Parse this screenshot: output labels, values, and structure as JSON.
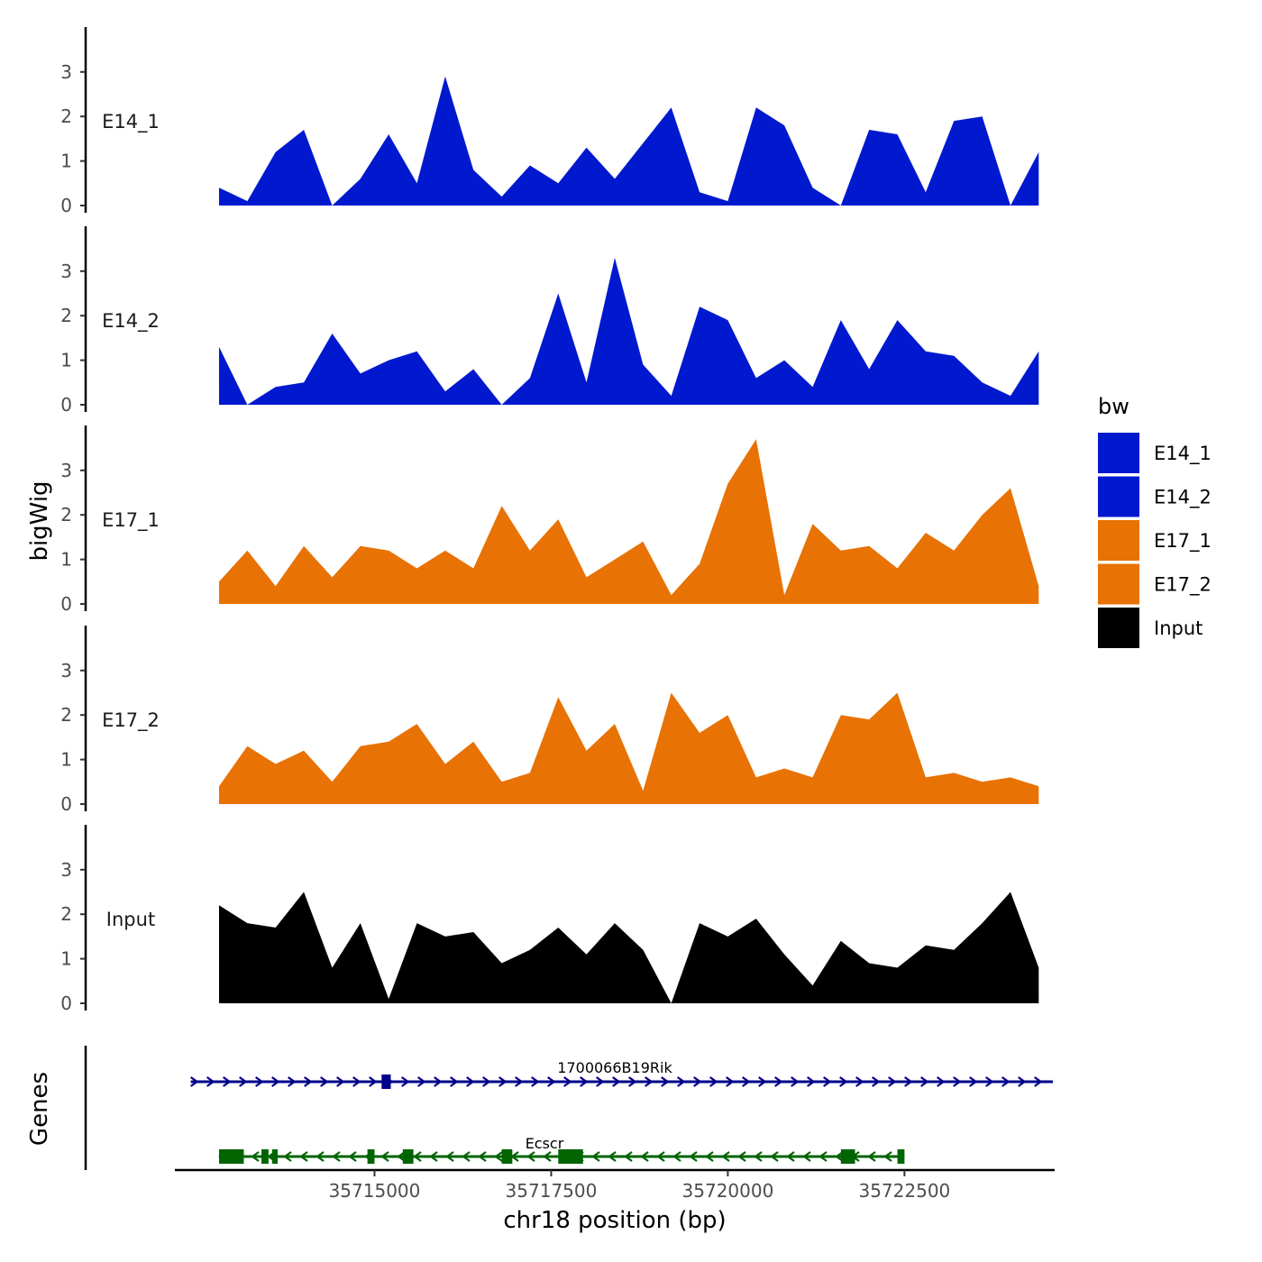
{
  "chart_data": {
    "type": "area",
    "title": "",
    "ylabel": "bigWig",
    "xlabel": "chr18 position (bp)",
    "xlim": [
      35712200,
      35724600
    ],
    "ylim": [
      0,
      4
    ],
    "yticks": [
      0,
      1,
      2,
      3
    ],
    "xticks": [
      35715000,
      35717500,
      35720000,
      35722500
    ],
    "xtick_labels": [
      "35715000",
      "35717500",
      "35720000",
      "35722500"
    ],
    "legend": {
      "title": "bw",
      "placement": "right",
      "entries": [
        {
          "name": "E14_1",
          "color": "#0019CF"
        },
        {
          "name": "E14_2",
          "color": "#0019CF"
        },
        {
          "name": "E17_1",
          "color": "#E87204"
        },
        {
          "name": "E17_2",
          "color": "#E87204"
        },
        {
          "name": "Input",
          "color": "#000000"
        }
      ]
    },
    "x": [
      35712800,
      35713200,
      35713600,
      35714000,
      35714400,
      35714800,
      35715200,
      35715600,
      35716000,
      35716400,
      35716800,
      35717200,
      35717600,
      35718000,
      35718400,
      35718800,
      35719200,
      35719600,
      35720000,
      35720400,
      35720800,
      35721200,
      35721600,
      35722000,
      35722400,
      35722800,
      35723200,
      35723600,
      35724000,
      35724400
    ],
    "series": [
      {
        "name": "E14_1",
        "color": "#0019CF",
        "values": [
          0.4,
          0.1,
          1.2,
          1.7,
          0.0,
          0.6,
          1.6,
          0.5,
          2.9,
          0.8,
          0.2,
          0.9,
          0.5,
          1.3,
          0.6,
          1.4,
          2.2,
          0.3,
          0.1,
          2.2,
          1.8,
          0.4,
          0.0,
          1.7,
          1.6,
          0.3,
          1.9,
          2.0,
          0.0,
          1.2
        ]
      },
      {
        "name": "E14_2",
        "color": "#0019CF",
        "values": [
          1.3,
          0.0,
          0.4,
          0.5,
          1.6,
          0.7,
          1.0,
          1.2,
          0.3,
          0.8,
          0.0,
          0.6,
          2.5,
          0.5,
          3.3,
          0.9,
          0.2,
          2.2,
          1.9,
          0.6,
          1.0,
          0.4,
          1.9,
          0.8,
          1.9,
          1.2,
          1.1,
          0.5,
          0.2,
          1.2
        ]
      },
      {
        "name": "E17_1",
        "color": "#E87204",
        "values": [
          0.5,
          1.2,
          0.4,
          1.3,
          0.6,
          1.3,
          1.2,
          0.8,
          1.2,
          0.8,
          2.2,
          1.2,
          1.9,
          0.6,
          1.0,
          1.4,
          0.2,
          0.9,
          2.7,
          3.7,
          0.2,
          1.8,
          1.2,
          1.3,
          0.8,
          1.6,
          1.2,
          2.0,
          2.6,
          0.4
        ]
      },
      {
        "name": "E17_2",
        "color": "#E87204",
        "values": [
          0.4,
          1.3,
          0.9,
          1.2,
          0.5,
          1.3,
          1.4,
          1.8,
          0.9,
          1.4,
          0.5,
          0.7,
          2.4,
          1.2,
          1.8,
          0.3,
          2.5,
          1.6,
          2.0,
          0.6,
          0.8,
          0.6,
          2.0,
          1.9,
          2.5,
          0.6,
          0.7,
          0.5,
          0.6,
          0.4
        ]
      },
      {
        "name": "Input",
        "color": "#000000",
        "values": [
          2.2,
          1.8,
          1.7,
          2.5,
          0.8,
          1.8,
          0.1,
          1.8,
          1.5,
          1.6,
          0.9,
          1.2,
          1.7,
          1.1,
          1.8,
          1.2,
          0.0,
          1.8,
          1.5,
          1.9,
          1.1,
          0.4,
          1.4,
          0.9,
          0.8,
          1.3,
          1.2,
          1.8,
          2.5,
          0.8
        ]
      }
    ],
    "genes": {
      "title": "Genes",
      "tracks": [
        {
          "name": "1700066B19Rik",
          "strand": "+",
          "color": "#00008B",
          "start": 35712400,
          "end": 35724600,
          "exons": [
            [
              35715100,
              35715230
            ]
          ]
        },
        {
          "name": "Ecscr",
          "strand": "-",
          "color": "#006400",
          "start": 35712800,
          "end": 35722500,
          "exons": [
            [
              35712800,
              35713150
            ],
            [
              35713400,
              35713500
            ],
            [
              35713550,
              35713630
            ],
            [
              35714900,
              35715000
            ],
            [
              35715400,
              35715550
            ],
            [
              35716800,
              35716950
            ],
            [
              35717600,
              35717950
            ],
            [
              35721600,
              35721800
            ],
            [
              35722400,
              35722500
            ]
          ]
        }
      ]
    }
  }
}
